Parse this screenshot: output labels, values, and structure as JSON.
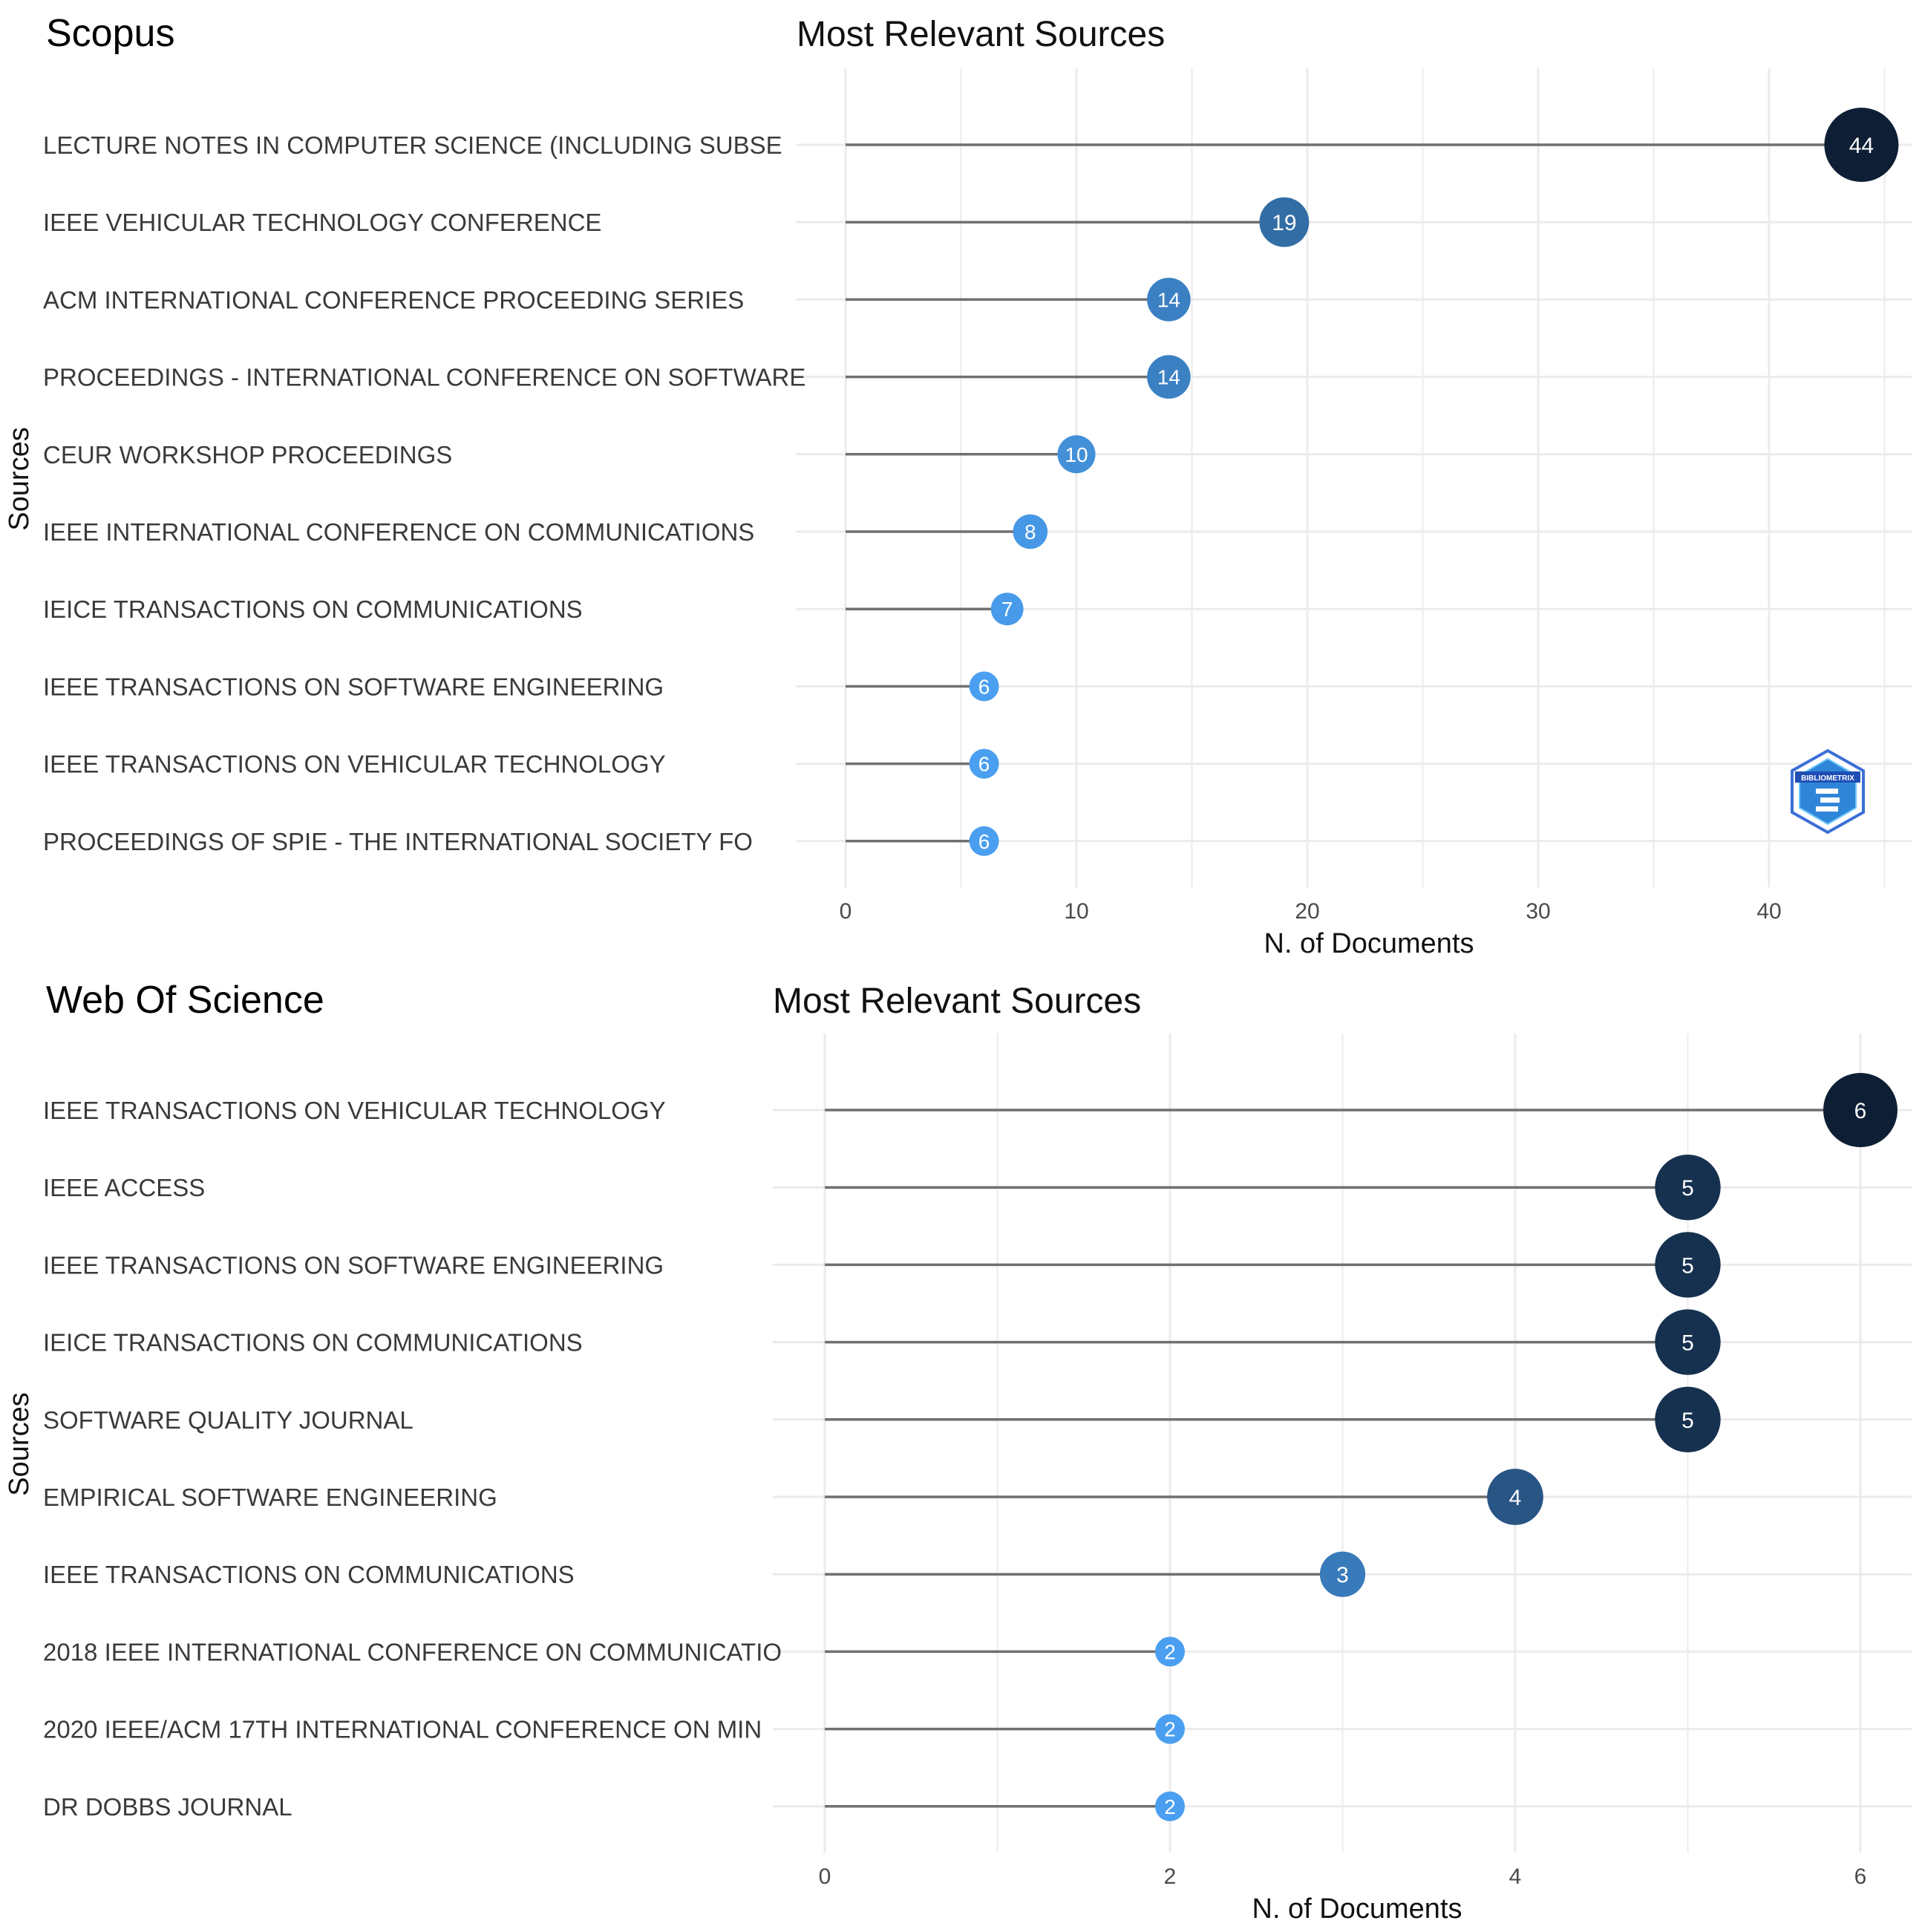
{
  "chart_data": [
    {
      "type": "lollipop",
      "panel_label": "Scopus",
      "title": "Most Relevant Sources",
      "xlabel": "N. of Documents",
      "ylabel": "Sources",
      "xlim": [
        0,
        46
      ],
      "xticks": [
        0,
        10,
        20,
        30,
        40
      ],
      "categories": [
        "LECTURE NOTES IN COMPUTER SCIENCE (INCLUDING SUBSE",
        "IEEE VEHICULAR TECHNOLOGY CONFERENCE",
        "ACM INTERNATIONAL CONFERENCE PROCEEDING SERIES",
        "PROCEEDINGS - INTERNATIONAL CONFERENCE ON SOFTWARE",
        "CEUR WORKSHOP PROCEEDINGS",
        "IEEE INTERNATIONAL CONFERENCE ON COMMUNICATIONS",
        "IEICE TRANSACTIONS ON COMMUNICATIONS",
        "IEEE TRANSACTIONS ON SOFTWARE ENGINEERING",
        "IEEE TRANSACTIONS ON VEHICULAR TECHNOLOGY",
        "PROCEEDINGS OF SPIE - THE INTERNATIONAL SOCIETY FO"
      ],
      "values": [
        44,
        19,
        14,
        14,
        10,
        8,
        7,
        6,
        6,
        6
      ],
      "logo_text": "BIBLIOMETRIX"
    },
    {
      "type": "lollipop",
      "panel_label": "Web Of Science",
      "title": "Most Relevant Sources",
      "xlabel": "N. of Documents",
      "ylabel": "Sources",
      "xlim": [
        0,
        6.15
      ],
      "xticks": [
        0,
        2,
        4,
        6
      ],
      "categories": [
        "IEEE TRANSACTIONS ON VEHICULAR TECHNOLOGY",
        "IEEE ACCESS",
        "IEEE TRANSACTIONS ON SOFTWARE ENGINEERING",
        "IEICE TRANSACTIONS ON COMMUNICATIONS",
        "SOFTWARE QUALITY JOURNAL",
        "EMPIRICAL SOFTWARE ENGINEERING",
        "IEEE TRANSACTIONS ON COMMUNICATIONS",
        "2018 IEEE INTERNATIONAL CONFERENCE ON COMMUNICATIO",
        "2020 IEEE/ACM 17TH INTERNATIONAL CONFERENCE ON MIN",
        "DR DOBBS JOURNAL"
      ],
      "values": [
        6,
        5,
        5,
        5,
        5,
        4,
        3,
        2,
        2,
        2
      ]
    }
  ],
  "colors": {
    "low": "#4a9ff0",
    "high": "#0e1f35",
    "grid": "#ebebeb",
    "stem": "#707070"
  }
}
